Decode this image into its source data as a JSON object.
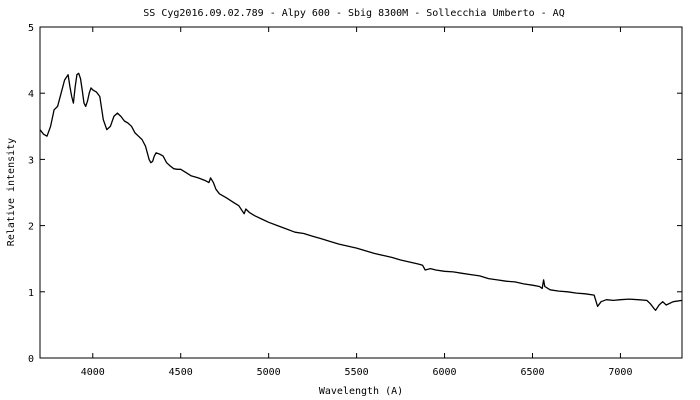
{
  "chart_data": {
    "type": "line",
    "title": "SS Cyg2016.09.02.789 - Alpy 600 - Sbig 8300M  - Sollecchia Umberto - AQ",
    "xlabel": "Wavelength (A)",
    "ylabel": "Relative intensity",
    "xlim": [
      3700,
      7350
    ],
    "ylim": [
      0,
      5
    ],
    "xticks": [
      4000,
      4500,
      5000,
      5500,
      6000,
      6500,
      7000
    ],
    "yticks": [
      0,
      1,
      2,
      3,
      4,
      5
    ],
    "grid": false,
    "legend": "none",
    "line_color": "#000000",
    "series": [
      {
        "x": [
          3700,
          3720,
          3740,
          3760,
          3780,
          3800,
          3820,
          3840,
          3860,
          3870,
          3880,
          3890,
          3900,
          3910,
          3920,
          3930,
          3940,
          3950,
          3960,
          3970,
          3980,
          3990,
          4000,
          4020,
          4040,
          4060,
          4080,
          4100,
          4120,
          4140,
          4160,
          4180,
          4200,
          4220,
          4240,
          4260,
          4280,
          4300,
          4320,
          4330,
          4340,
          4350,
          4360,
          4380,
          4400,
          4420,
          4440,
          4460,
          4480,
          4500,
          4530,
          4560,
          4600,
          4640,
          4660,
          4670,
          4686,
          4700,
          4720,
          4760,
          4800,
          4830,
          4850,
          4861,
          4870,
          4890,
          4920,
          4960,
          5000,
          5050,
          5100,
          5150,
          5200,
          5250,
          5300,
          5350,
          5400,
          5450,
          5500,
          5550,
          5600,
          5650,
          5700,
          5750,
          5800,
          5850,
          5875,
          5890,
          5920,
          5950,
          6000,
          6050,
          6100,
          6150,
          6200,
          6250,
          6300,
          6350,
          6400,
          6450,
          6500,
          6540,
          6555,
          6563,
          6570,
          6600,
          6650,
          6700,
          6750,
          6800,
          6850,
          6870,
          6890,
          6920,
          6960,
          7000,
          7050,
          7100,
          7150,
          7170,
          7190,
          7200,
          7220,
          7240,
          7260,
          7300,
          7350
        ],
        "values": [
          3.45,
          3.38,
          3.35,
          3.5,
          3.75,
          3.8,
          4.0,
          4.2,
          4.28,
          4.1,
          3.95,
          3.85,
          4.1,
          4.28,
          4.3,
          4.22,
          4.05,
          3.85,
          3.8,
          3.88,
          4.0,
          4.08,
          4.05,
          4.02,
          3.95,
          3.6,
          3.45,
          3.5,
          3.65,
          3.7,
          3.65,
          3.58,
          3.55,
          3.5,
          3.4,
          3.35,
          3.3,
          3.2,
          3.0,
          2.95,
          2.97,
          3.05,
          3.1,
          3.08,
          3.05,
          2.95,
          2.9,
          2.86,
          2.85,
          2.85,
          2.8,
          2.75,
          2.72,
          2.68,
          2.65,
          2.72,
          2.65,
          2.55,
          2.48,
          2.42,
          2.35,
          2.3,
          2.22,
          2.18,
          2.25,
          2.2,
          2.15,
          2.1,
          2.05,
          2.0,
          1.95,
          1.9,
          1.88,
          1.84,
          1.8,
          1.76,
          1.72,
          1.69,
          1.66,
          1.62,
          1.58,
          1.55,
          1.52,
          1.48,
          1.45,
          1.42,
          1.4,
          1.33,
          1.35,
          1.33,
          1.31,
          1.3,
          1.28,
          1.26,
          1.24,
          1.2,
          1.18,
          1.16,
          1.15,
          1.12,
          1.1,
          1.08,
          1.05,
          1.18,
          1.08,
          1.03,
          1.01,
          1.0,
          0.98,
          0.97,
          0.95,
          0.78,
          0.85,
          0.88,
          0.87,
          0.88,
          0.89,
          0.88,
          0.87,
          0.82,
          0.75,
          0.72,
          0.8,
          0.85,
          0.8,
          0.85,
          0.87
        ]
      }
    ]
  }
}
